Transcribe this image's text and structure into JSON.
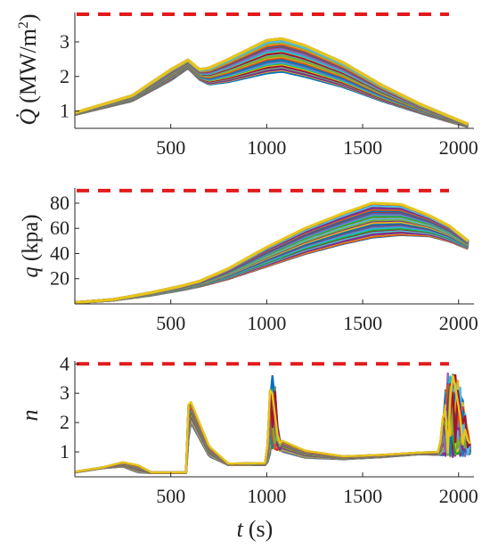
{
  "chart_data": [
    {
      "type": "line",
      "ylabel": "Q̇ (MW/m²)",
      "ylabel_parts": {
        "symbol": "Q̇",
        "unit_open": "(MW/m",
        "unit_sup": "2",
        "unit_close": ")"
      },
      "xlim": [
        0,
        2080
      ],
      "ylim": [
        0.5,
        3.85
      ],
      "xticks": [
        500,
        1000,
        1500,
        2000
      ],
      "yticks": [
        1,
        2,
        3
      ],
      "grid": false,
      "constraint": {
        "value": 3.8,
        "color": "#e31a1c",
        "style": "dashed"
      },
      "trajectory_count": "many (dozens of overlapping colored trajectories)",
      "envelope": {
        "x": [
          0,
          300,
          500,
          590,
          650,
          700,
          800,
          1000,
          1080,
          1200,
          1400,
          1600,
          1800,
          1950,
          2050
        ],
        "low": [
          0.9,
          1.3,
          1.9,
          2.25,
          1.92,
          1.78,
          1.85,
          2.1,
          2.15,
          2.0,
          1.7,
          1.3,
          0.95,
          0.7,
          0.55
        ],
        "high": [
          0.95,
          1.45,
          2.2,
          2.48,
          2.2,
          2.25,
          2.5,
          3.05,
          3.1,
          2.9,
          2.4,
          1.75,
          1.2,
          0.85,
          0.62
        ]
      }
    },
    {
      "type": "line",
      "ylabel": "q (kpa)",
      "ylabel_parts": {
        "symbol": "q",
        "unit": "(kpa)"
      },
      "xlim": [
        0,
        2080
      ],
      "ylim": [
        0,
        92
      ],
      "xticks": [
        500,
        1000,
        1500,
        2000
      ],
      "yticks": [
        20,
        40,
        60,
        80
      ],
      "grid": false,
      "constraint": {
        "value": 90,
        "color": "#e31a1c",
        "style": "dashed"
      },
      "envelope": {
        "x": [
          0,
          200,
          400,
          550,
          650,
          800,
          1000,
          1200,
          1400,
          1550,
          1700,
          1850,
          1950,
          2050
        ],
        "low": [
          1,
          3,
          7,
          11,
          14,
          20,
          30,
          40,
          48,
          53,
          55,
          54,
          50,
          44
        ],
        "high": [
          1,
          3.5,
          9,
          14,
          18,
          28,
          45,
          60,
          72,
          80,
          79,
          70,
          62,
          50
        ]
      }
    },
    {
      "type": "line",
      "ylabel": "n",
      "xlabel": "t (s)",
      "xlabel_parts": {
        "symbol": "t",
        "unit": "(s)"
      },
      "xlim": [
        0,
        2080
      ],
      "ylim": [
        0.15,
        4.1
      ],
      "xticks": [
        500,
        1000,
        1500,
        2000
      ],
      "yticks": [
        1,
        2,
        3,
        4
      ],
      "grid": false,
      "constraint": {
        "value": 4,
        "color": "#e31a1c",
        "style": "dashed"
      },
      "envelope": {
        "x": [
          0,
          150,
          250,
          330,
          400,
          585,
          590,
          600,
          700,
          800,
          1000,
          1020,
          1040,
          1060,
          1200,
          1400,
          1600,
          1800,
          1900,
          1940,
          2000,
          2060
        ],
        "low": [
          0.3,
          0.45,
          0.5,
          0.3,
          0.28,
          0.28,
          1.3,
          2.05,
          0.85,
          0.55,
          0.55,
          1.0,
          1.1,
          1.05,
          0.8,
          0.75,
          0.82,
          0.92,
          0.9,
          0.85,
          0.8,
          0.9
        ],
        "high": [
          0.32,
          0.48,
          0.65,
          0.55,
          0.3,
          0.3,
          2.6,
          2.8,
          1.2,
          0.6,
          0.62,
          3.6,
          3.7,
          1.45,
          1.05,
          0.85,
          0.9,
          0.98,
          1.0,
          3.7,
          3.6,
          1.3
        ]
      }
    }
  ],
  "palette": [
    "#0072BD",
    "#D95319",
    "#EDB120",
    "#7E2F8E",
    "#77AC30",
    "#4DBEEE",
    "#A2142F",
    "#e6c619",
    "#2ca02c",
    "#17becf",
    "#9467bd",
    "#1f77b4",
    "#d62728"
  ]
}
